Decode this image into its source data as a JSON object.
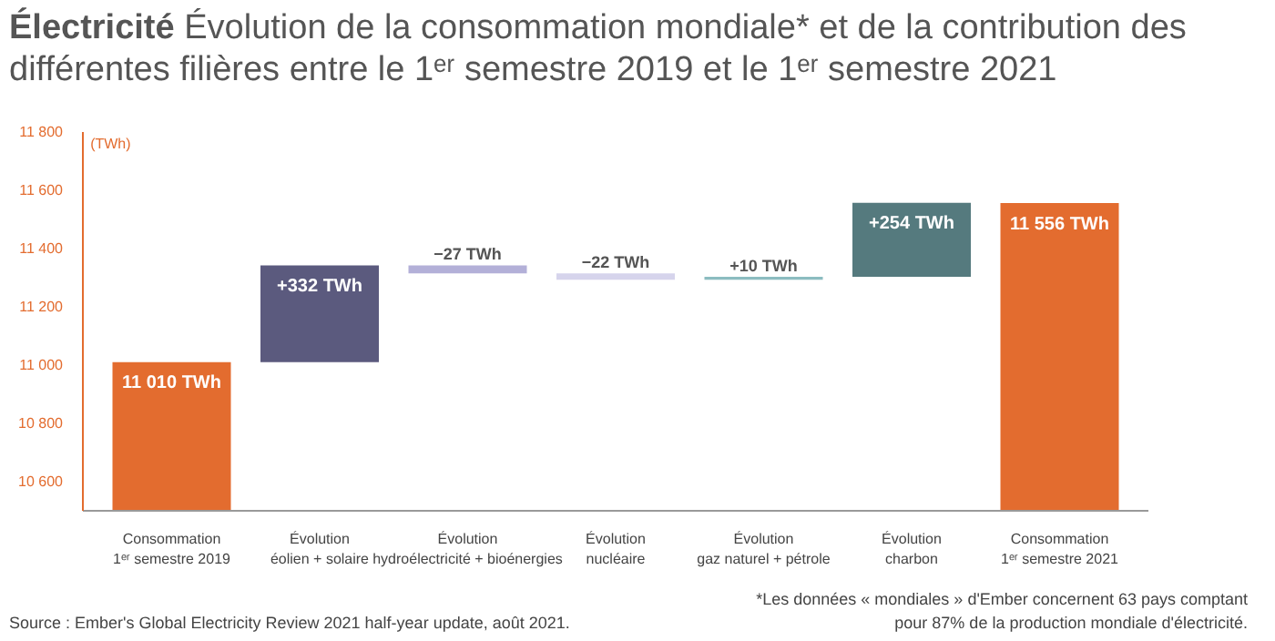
{
  "chart_data": {
    "type": "bar",
    "title": "Électricité",
    "subtitle": "Évolution de la consommation mondiale* et de la contribution des différentes filières entre le 1ᵉʳ semestre 2019 et le 1ᵉʳ semestre 2021",
    "ylabel": "(TWh)",
    "categories": [
      "Consommation\n1ᵉʳ semestre 2019",
      "Évolution\néolien + solaire",
      "Évolution\nhydroélectricité + bioénergies",
      "Évolution\nnucléaire",
      "Évolution\ngaz naturel + pétrole",
      "Évolution\ncharbon",
      "Consommation\n1ᵉʳ semestre 2021"
    ],
    "values": [
      11010,
      332,
      -27,
      -22,
      10,
      254,
      11556
    ],
    "base": [
      null,
      11010,
      11342,
      11315,
      11293,
      11303,
      null
    ],
    "colors": [
      "#e36c2f",
      "#5b5a7e",
      "#b3b0d8",
      "#d6d4ec",
      "#8cbcc0",
      "#557a7e",
      "#e36c2f"
    ],
    "value_labels": [
      "11 010 TWh",
      "+332 TWh",
      "−27 TWh",
      "−22 TWh",
      "+10 TWh",
      "+254 TWh",
      "11 556 TWh"
    ],
    "ylim": [
      10500,
      11800
    ],
    "yticks": [
      {
        "value": 10600,
        "label": "10 600"
      },
      {
        "value": 10800,
        "label": "10 800"
      },
      {
        "value": 11000,
        "label": "11 000"
      },
      {
        "value": 11200,
        "label": "11 200"
      },
      {
        "value": 11400,
        "label": "11 400"
      },
      {
        "value": 11600,
        "label": "11 600"
      },
      {
        "value": 11800,
        "label": "11 800"
      }
    ],
    "grid": false,
    "annotations": [
      "Source : Ember's Global Electricity Review 2021 half-year update, août 2021.",
      "*Les données « mondiales » d'Ember concernent 63 pays comptant pour 87% de la production mondiale d'électricité."
    ]
  }
}
